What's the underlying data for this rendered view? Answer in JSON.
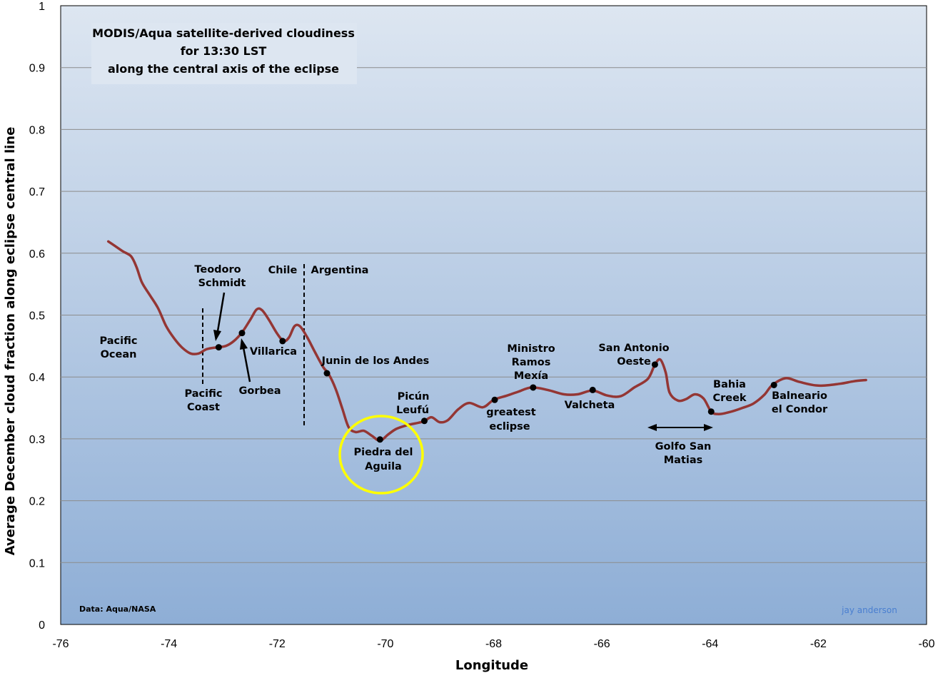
{
  "chart_data": {
    "type": "line",
    "title_lines": [
      "MODIS/Aqua satellite-derived cloudiness",
      "for 13:30 LST",
      "along the central axis of the eclipse"
    ],
    "xlabel": "Longitude",
    "ylabel": "Average December cloud fraction along eclipse central line",
    "xlim": [
      -76,
      -60
    ],
    "ylim": [
      0,
      1
    ],
    "x_ticks": [
      "-76",
      "-74",
      "-72",
      "-70",
      "-68",
      "-66",
      "-64",
      "-62",
      "-60"
    ],
    "y_ticks": [
      "0",
      "0.1",
      "0.2",
      "0.3",
      "0.4",
      "0.5",
      "0.6",
      "0.7",
      "0.8",
      "0.9",
      "1"
    ],
    "grid": true,
    "series": [
      {
        "color": "#943634",
        "points": [
          [
            -75.12,
            0.619
          ],
          [
            -75.0,
            0.612
          ],
          [
            -74.85,
            0.603
          ],
          [
            -74.7,
            0.595
          ],
          [
            -74.6,
            0.578
          ],
          [
            -74.5,
            0.553
          ],
          [
            -74.35,
            0.532
          ],
          [
            -74.2,
            0.511
          ],
          [
            -74.05,
            0.482
          ],
          [
            -73.9,
            0.462
          ],
          [
            -73.75,
            0.447
          ],
          [
            -73.6,
            0.438
          ],
          [
            -73.45,
            0.438
          ],
          [
            -73.3,
            0.445
          ],
          [
            -73.1,
            0.448
          ],
          [
            -72.95,
            0.45
          ],
          [
            -72.8,
            0.458
          ],
          [
            -72.65,
            0.472
          ],
          [
            -72.5,
            0.492
          ],
          [
            -72.38,
            0.509
          ],
          [
            -72.28,
            0.508
          ],
          [
            -72.15,
            0.492
          ],
          [
            -72.0,
            0.47
          ],
          [
            -71.88,
            0.458
          ],
          [
            -71.78,
            0.464
          ],
          [
            -71.68,
            0.482
          ],
          [
            -71.58,
            0.482
          ],
          [
            -71.45,
            0.465
          ],
          [
            -71.3,
            0.44
          ],
          [
            -71.15,
            0.416
          ],
          [
            -71.05,
            0.405
          ],
          [
            -70.92,
            0.381
          ],
          [
            -70.8,
            0.35
          ],
          [
            -70.68,
            0.319
          ],
          [
            -70.55,
            0.311
          ],
          [
            -70.4,
            0.313
          ],
          [
            -70.25,
            0.305
          ],
          [
            -70.1,
            0.297
          ],
          [
            -69.95,
            0.307
          ],
          [
            -69.8,
            0.316
          ],
          [
            -69.6,
            0.322
          ],
          [
            -69.3,
            0.328
          ],
          [
            -69.15,
            0.335
          ],
          [
            -69.0,
            0.327
          ],
          [
            -68.85,
            0.33
          ],
          [
            -68.65,
            0.348
          ],
          [
            -68.45,
            0.358
          ],
          [
            -68.2,
            0.351
          ],
          [
            -68.0,
            0.363
          ],
          [
            -67.75,
            0.37
          ],
          [
            -67.55,
            0.376
          ],
          [
            -67.3,
            0.383
          ],
          [
            -67.0,
            0.379
          ],
          [
            -66.7,
            0.372
          ],
          [
            -66.45,
            0.372
          ],
          [
            -66.17,
            0.378
          ],
          [
            -65.9,
            0.37
          ],
          [
            -65.65,
            0.369
          ],
          [
            -65.4,
            0.383
          ],
          [
            -65.15,
            0.397
          ],
          [
            -65.02,
            0.42
          ],
          [
            -64.92,
            0.428
          ],
          [
            -64.82,
            0.407
          ],
          [
            -64.75,
            0.375
          ],
          [
            -64.6,
            0.362
          ],
          [
            -64.45,
            0.364
          ],
          [
            -64.28,
            0.372
          ],
          [
            -64.12,
            0.365
          ],
          [
            -63.98,
            0.344
          ],
          [
            -63.85,
            0.34
          ],
          [
            -63.65,
            0.343
          ],
          [
            -63.4,
            0.35
          ],
          [
            -63.2,
            0.357
          ],
          [
            -63.0,
            0.371
          ],
          [
            -62.85,
            0.387
          ],
          [
            -62.6,
            0.398
          ],
          [
            -62.35,
            0.392
          ],
          [
            -62.0,
            0.386
          ],
          [
            -61.6,
            0.389
          ],
          [
            -61.35,
            0.393
          ],
          [
            -61.12,
            0.395
          ]
        ]
      }
    ],
    "markers": [
      {
        "x": -73.08,
        "y": 0.448
      },
      {
        "x": -72.65,
        "y": 0.471
      },
      {
        "x": -71.9,
        "y": 0.458
      },
      {
        "x": -71.08,
        "y": 0.406
      },
      {
        "x": -70.1,
        "y": 0.299
      },
      {
        "x": -69.28,
        "y": 0.329
      },
      {
        "x": -67.98,
        "y": 0.363
      },
      {
        "x": -67.27,
        "y": 0.383
      },
      {
        "x": -66.17,
        "y": 0.379
      },
      {
        "x": -65.02,
        "y": 0.42
      },
      {
        "x": -63.98,
        "y": 0.344
      },
      {
        "x": -62.82,
        "y": 0.387
      }
    ],
    "annotations": [
      {
        "lines": [
          "Pacific",
          "Ocean"
        ]
      },
      {
        "lines": [
          "Teodoro",
          "Schmidt"
        ]
      },
      {
        "lines": [
          "Pacific",
          "Coast"
        ]
      },
      {
        "lines": [
          "Gorbea"
        ]
      },
      {
        "lines": [
          "Villarica"
        ]
      },
      {
        "lines": [
          "Chile"
        ]
      },
      {
        "lines": [
          "Argentina"
        ]
      },
      {
        "lines": [
          "Junin de los Andes"
        ]
      },
      {
        "lines": [
          "Picún",
          "Leufú"
        ]
      },
      {
        "lines": [
          "Piedra del",
          "Aguila"
        ]
      },
      {
        "lines": [
          "greatest",
          "eclipse"
        ]
      },
      {
        "lines": [
          "Ministro",
          "Ramos",
          "Mexía"
        ]
      },
      {
        "lines": [
          "Valcheta"
        ]
      },
      {
        "lines": [
          "San Antonio",
          "Oeste"
        ]
      },
      {
        "lines": [
          "Bahia",
          "Creek"
        ]
      },
      {
        "lines": [
          "Balneario",
          "el Condor"
        ]
      },
      {
        "lines": [
          "Golfo San",
          "Matias"
        ]
      }
    ],
    "credit": "Data: Aqua/NASA",
    "signature": "jay anderson",
    "colors": {
      "line": "#943634",
      "highlight_circle": "#ffff00",
      "background_top": "#dde6f1",
      "background_bottom": "#8eaed6"
    }
  }
}
